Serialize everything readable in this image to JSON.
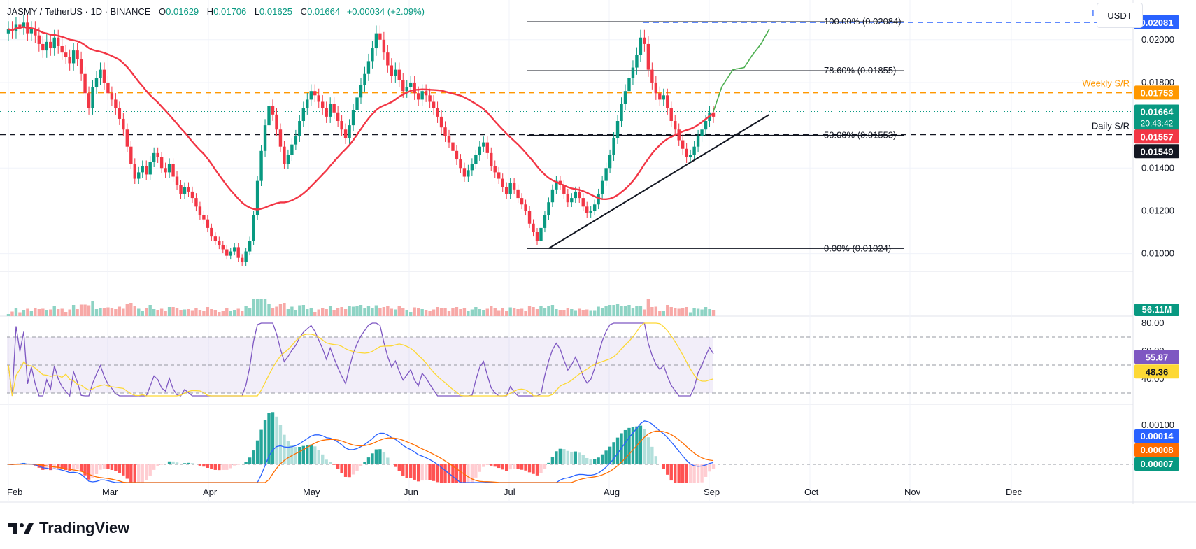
{
  "header": {
    "symbol": "JASMY / TetherUS · 1D · BINANCE",
    "o_label": "O",
    "o_value": "0.01629",
    "h_label": "H",
    "h_value": "0.01706",
    "l_label": "L",
    "l_value": "0.01625",
    "c_label": "C",
    "c_value": "0.01664",
    "change": "+0.00034 (+2.09%)"
  },
  "currency_button": "USDT",
  "brand": "TradingView",
  "colors": {
    "up": "#089981",
    "down": "#f23645",
    "ma": "#f23645",
    "weekly_sr": "#ff9800",
    "high": "#2962ff",
    "rsi": "#7e57c2",
    "rsi_ma": "#fdd835",
    "macd": "#2962ff",
    "signal": "#ff6d00",
    "projection": "#4caf50"
  },
  "chart_data": [
    {
      "type": "candlestick",
      "title": "JASMY / TetherUS · 1D · BINANCE",
      "x_labels": [
        "Feb",
        "Mar",
        "Apr",
        "May",
        "Jun",
        "Jul",
        "Aug",
        "Sep",
        "Oct",
        "Nov",
        "Dec"
      ],
      "y_ticks": [
        "0.01000",
        "0.01200",
        "0.01400",
        "0.01800",
        "0.02000"
      ],
      "ylim": [
        0.0093,
        0.0214
      ],
      "series_close": [
        0.0205,
        0.0204,
        0.0207,
        0.0206,
        0.0208,
        0.0203,
        0.0205,
        0.0202,
        0.0198,
        0.0195,
        0.0199,
        0.0196,
        0.0201,
        0.0197,
        0.0194,
        0.0192,
        0.0189,
        0.0195,
        0.0191,
        0.0184,
        0.0175,
        0.0168,
        0.0178,
        0.0182,
        0.0186,
        0.018,
        0.0175,
        0.0172,
        0.0168,
        0.0163,
        0.0158,
        0.015,
        0.0142,
        0.0135,
        0.0138,
        0.0141,
        0.0137,
        0.0143,
        0.0147,
        0.0145,
        0.014,
        0.0138,
        0.0142,
        0.0136,
        0.0132,
        0.0128,
        0.0131,
        0.0129,
        0.0126,
        0.0122,
        0.0118,
        0.0116,
        0.0112,
        0.0108,
        0.0106,
        0.0104,
        0.0102,
        0.0099,
        0.0101,
        0.0103,
        0.0098,
        0.0096,
        0.0101,
        0.0106,
        0.0118,
        0.0134,
        0.0148,
        0.016,
        0.0169,
        0.0165,
        0.0158,
        0.015,
        0.0142,
        0.0146,
        0.0151,
        0.0155,
        0.0162,
        0.0168,
        0.0172,
        0.0176,
        0.0174,
        0.0171,
        0.0168,
        0.0164,
        0.017,
        0.0166,
        0.0162,
        0.0158,
        0.0154,
        0.016,
        0.0167,
        0.0173,
        0.0179,
        0.0184,
        0.019,
        0.0196,
        0.0203,
        0.02,
        0.0194,
        0.0188,
        0.0183,
        0.0186,
        0.0181,
        0.0176,
        0.0178,
        0.018,
        0.0175,
        0.0172,
        0.0176,
        0.0174,
        0.0171,
        0.0168,
        0.0164,
        0.0159,
        0.0155,
        0.0152,
        0.0148,
        0.0144,
        0.014,
        0.0136,
        0.0139,
        0.0142,
        0.0146,
        0.015,
        0.0152,
        0.0147,
        0.0141,
        0.0138,
        0.0135,
        0.0131,
        0.0128,
        0.0133,
        0.013,
        0.0126,
        0.0123,
        0.012,
        0.0114,
        0.011,
        0.0106,
        0.0112,
        0.0118,
        0.0124,
        0.013,
        0.0134,
        0.0132,
        0.0128,
        0.0124,
        0.0126,
        0.0129,
        0.0126,
        0.0122,
        0.0119,
        0.012,
        0.0123,
        0.0128,
        0.0134,
        0.014,
        0.0146,
        0.0154,
        0.0162,
        0.017,
        0.0176,
        0.0182,
        0.0187,
        0.0193,
        0.0201,
        0.0198,
        0.0186,
        0.018,
        0.0175,
        0.0172,
        0.0174,
        0.0168,
        0.0162,
        0.0158,
        0.0153,
        0.0149,
        0.0145,
        0.0146,
        0.015,
        0.0155,
        0.0158,
        0.0162,
        0.0166,
        0.0164
      ],
      "moving_average_label": "",
      "levels": [
        {
          "label": "100.00% (0.02084)",
          "value": 0.02084
        },
        {
          "label": "78.60% (0.01855)",
          "value": 0.01855
        },
        {
          "label": "50.00% (0.01553)",
          "value": 0.01553
        },
        {
          "label": "0.00% (0.01024)",
          "value": 0.01024
        }
      ],
      "annotations": [
        {
          "text": "High",
          "value": 0.02081
        },
        {
          "text": "Weekly S/R",
          "value": 0.01753
        },
        {
          "text": "Daily S/R",
          "value": 0.01557
        }
      ],
      "price_tags": [
        {
          "text": "0.02081",
          "color": "#2962ff"
        },
        {
          "text": "0.01753",
          "color": "#ff9800"
        },
        {
          "text": "0.01664",
          "sub": "20:43:42",
          "color": "#089981"
        },
        {
          "text": "0.01557",
          "color": "#f23645"
        },
        {
          "text": "0.01549",
          "color": "#131722"
        }
      ]
    },
    {
      "type": "bar",
      "title": "",
      "last_value": "56.11M"
    },
    {
      "type": "line",
      "title": "",
      "y_ticks": [
        "80.00",
        "60.00",
        "40.00"
      ],
      "ylim": [
        25,
        82
      ],
      "band": [
        30,
        70
      ],
      "rsi_tag": "55.87",
      "rsi_ma_tag": "48.36"
    },
    {
      "type": "bar",
      "title": "",
      "y_ticks": [
        "0.00100"
      ],
      "tags": [
        "0.00014",
        "0.00008",
        "0.00007"
      ]
    }
  ]
}
